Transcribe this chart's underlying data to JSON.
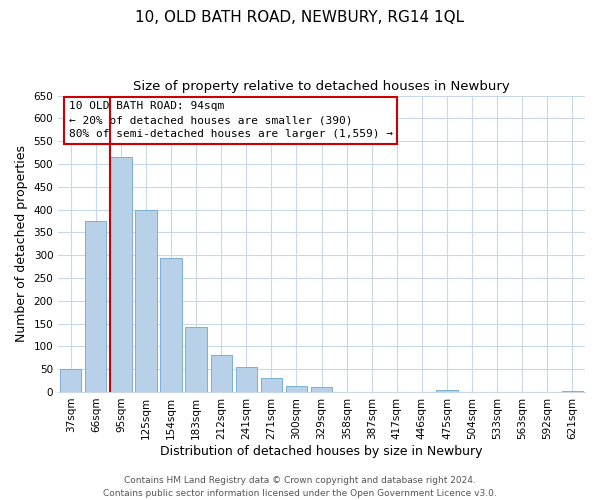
{
  "title": "10, OLD BATH ROAD, NEWBURY, RG14 1QL",
  "subtitle": "Size of property relative to detached houses in Newbury",
  "xlabel": "Distribution of detached houses by size in Newbury",
  "ylabel": "Number of detached properties",
  "bar_labels": [
    "37sqm",
    "66sqm",
    "95sqm",
    "125sqm",
    "154sqm",
    "183sqm",
    "212sqm",
    "241sqm",
    "271sqm",
    "300sqm",
    "329sqm",
    "358sqm",
    "387sqm",
    "417sqm",
    "446sqm",
    "475sqm",
    "504sqm",
    "533sqm",
    "563sqm",
    "592sqm",
    "621sqm"
  ],
  "bar_values": [
    50,
    375,
    515,
    400,
    293,
    143,
    82,
    55,
    30,
    14,
    10,
    0,
    0,
    0,
    0,
    5,
    0,
    0,
    0,
    0,
    2
  ],
  "bar_color": "#b8d0e8",
  "bar_edge_color": "#7aafd4",
  "vline_bar_index": 2,
  "vline_color": "#cc0000",
  "ylim": [
    0,
    650
  ],
  "yticks": [
    0,
    50,
    100,
    150,
    200,
    250,
    300,
    350,
    400,
    450,
    500,
    550,
    600,
    650
  ],
  "annotation_title": "10 OLD BATH ROAD: 94sqm",
  "annotation_line1": "← 20% of detached houses are smaller (390)",
  "annotation_line2": "80% of semi-detached houses are larger (1,559) →",
  "footer_line1": "Contains HM Land Registry data © Crown copyright and database right 2024.",
  "footer_line2": "Contains public sector information licensed under the Open Government Licence v3.0.",
  "background_color": "#ffffff",
  "grid_color": "#c8d8e8",
  "title_fontsize": 11,
  "subtitle_fontsize": 9.5,
  "axis_label_fontsize": 9,
  "tick_fontsize": 7.5,
  "annotation_fontsize": 8,
  "footer_fontsize": 6.5
}
